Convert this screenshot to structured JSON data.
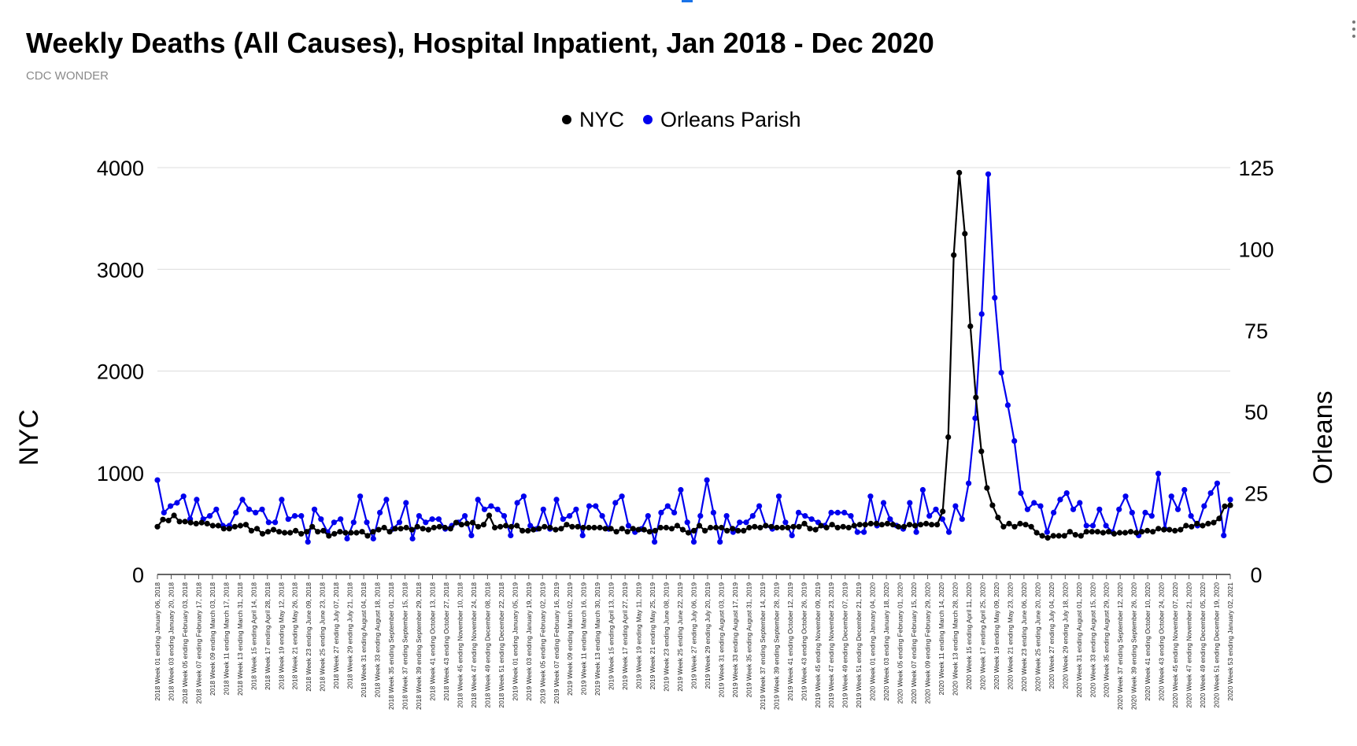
{
  "title": "Weekly Deaths (All Causes), Hospital Inpatient, Jan 2018 - Dec 2020",
  "subtitle": "CDC WONDER",
  "chart_data": {
    "type": "line",
    "legend_position": "top",
    "grid": true,
    "y_left": {
      "label": "NYC",
      "range": [
        0,
        4000
      ],
      "ticks": [
        0,
        1000,
        2000,
        3000,
        4000
      ]
    },
    "y_right": {
      "label": "Orleans",
      "range": [
        0,
        125
      ],
      "ticks": [
        0,
        25,
        50,
        75,
        100,
        125
      ]
    },
    "x_tick_labels": [
      "2018 Week 01 ending January 06, 2018",
      "2018 Week 03 ending January 20, 2018",
      "2018 Week 05 ending February 03, 2018",
      "2018 Week 07 ending February 17, 2018",
      "2018 Week 09 ending March 03, 2018",
      "2018 Week 11 ending March 17, 2018",
      "2018 Week 13 ending March 31, 2018",
      "2018 Week 15 ending April 14, 2018",
      "2018 Week 17 ending April 28, 2018",
      "2018 Week 19 ending May 12, 2018",
      "2018 Week 21 ending May 26, 2018",
      "2018 Week 23 ending June 09, 2018",
      "2018 Week 25 ending June 23, 2018",
      "2018 Week 27 ending July 07, 2018",
      "2018 Week 29 ending July 21, 2018",
      "2018 Week 31 ending August 04, 2018",
      "2018 Week 33 ending August 18, 2018",
      "2018 Week 35 ending September 01, 2018",
      "2018 Week 37 ending September 15, 2018",
      "2018 Week 39 ending September 29, 2018",
      "2018 Week 41 ending October 13, 2018",
      "2018 Week 43 ending October 27, 2018",
      "2018 Week 45 ending November 10, 2018",
      "2018 Week 47 ending November 24, 2018",
      "2018 Week 49 ending December 08, 2018",
      "2018 Week 51 ending December 22, 2018",
      "2019 Week 01 ending January 05, 2019",
      "2019 Week 03 ending January 19, 2019",
      "2019 Week 05 ending February 02, 2019",
      "2019 Week 07 ending February 16, 2019",
      "2019 Week 09 ending March 02, 2019",
      "2019 Week 11 ending March 16, 2019",
      "2019 Week 13 ending March 30, 2019",
      "2019 Week 15 ending April 13, 2019",
      "2019 Week 17 ending April 27, 2019",
      "2019 Week 19 ending May 11, 2019",
      "2019 Week 21 ending May 25, 2019",
      "2019 Week 23 ending June 08, 2019",
      "2019 Week 25 ending June 22, 2019",
      "2019 Week 27 ending July 06, 2019",
      "2019 Week 29 ending July 20, 2019",
      "2019 Week 31 ending August 03, 2019",
      "2019 Week 33 ending August 17, 2019",
      "2019 Week 35 ending August 31, 2019",
      "2019 Week 37 ending September 14, 2019",
      "2019 Week 39 ending September 28, 2019",
      "2019 Week 41 ending October 12, 2019",
      "2019 Week 43 ending October 26, 2019",
      "2019 Week 45 ending November 09, 2019",
      "2019 Week 47 ending November 23, 2019",
      "2019 Week 49 ending December 07, 2019",
      "2019 Week 51 ending December 21, 2019",
      "2020 Week 01 ending January 04, 2020",
      "2020 Week 03 ending January 18, 2020",
      "2020 Week 05 ending February 01, 2020",
      "2020 Week 07 ending February 15, 2020",
      "2020 Week 09 ending February 29, 2020",
      "2020 Week 11 ending March 14, 2020",
      "2020 Week 13 ending March 28, 2020",
      "2020 Week 15 ending April 11, 2020",
      "2020 Week 17 ending April 25, 2020",
      "2020 Week 19 ending May 09, 2020",
      "2020 Week 21 ending May 23, 2020",
      "2020 Week 23 ending June 06, 2020",
      "2020 Week 25 ending June 20, 2020",
      "2020 Week 27 ending July 04, 2020",
      "2020 Week 29 ending July 18, 2020",
      "2020 Week 31 ending August 01, 2020",
      "2020 Week 33 ending August 15, 2020",
      "2020 Week 35 ending August 29, 2020",
      "2020 Week 37 ending September 12, 2020",
      "2020 Week 39 ending September 26, 2020",
      "2020 Week 41 ending October 10, 2020",
      "2020 Week 43 ending October 24, 2020",
      "2020 Week 45 ending November 07, 2020",
      "2020 Week 47 ending November 21, 2020",
      "2020 Week 49 ending December 05, 2020",
      "2020 Week 51 ending December 19, 2020",
      "2020 Week 53 ending January 02, 2021"
    ],
    "series": [
      {
        "name": "NYC",
        "axis": "left",
        "color": "#000000",
        "values": [
          470,
          540,
          530,
          580,
          520,
          520,
          510,
          500,
          510,
          500,
          480,
          480,
          450,
          450,
          470,
          480,
          490,
          430,
          450,
          400,
          420,
          440,
          420,
          410,
          410,
          430,
          400,
          420,
          470,
          420,
          430,
          380,
          400,
          420,
          410,
          410,
          410,
          420,
          380,
          420,
          440,
          460,
          420,
          450,
          450,
          460,
          440,
          470,
          450,
          440,
          460,
          470,
          460,
          450,
          510,
          490,
          500,
          510,
          470,
          490,
          580,
          460,
          470,
          480,
          470,
          480,
          430,
          430,
          440,
          450,
          470,
          460,
          440,
          450,
          490,
          470,
          470,
          460,
          460,
          460,
          460,
          450,
          450,
          420,
          450,
          420,
          450,
          440,
          440,
          420,
          430,
          460,
          460,
          450,
          480,
          440,
          410,
          430,
          480,
          430,
          460,
          460,
          460,
          430,
          450,
          430,
          430,
          460,
          470,
          460,
          480,
          470,
          460,
          460,
          460,
          470,
          470,
          500,
          450,
          440,
          480,
          460,
          490,
          460,
          470,
          460,
          480,
          490,
          490,
          500,
          500,
          490,
          500,
          490,
          470,
          470,
          490,
          480,
          490,
          500,
          490,
          490,
          620,
          1350,
          3140,
          3950,
          3350,
          2440,
          1740,
          1210,
          850,
          680,
          560,
          470,
          500,
          470,
          500,
          490,
          470,
          410,
          380,
          360,
          380,
          380,
          380,
          420,
          390,
          380,
          420,
          420,
          420,
          410,
          420,
          400,
          410,
          410,
          420,
          410,
          420,
          430,
          420,
          450,
          440,
          440,
          430,
          440,
          480,
          470,
          500,
          480,
          500,
          510,
          550,
          670,
          680
        ]
      },
      {
        "name": "Orleans Parish",
        "axis": "right",
        "color": "#0000ee",
        "values": [
          29,
          19,
          21,
          22,
          24,
          17,
          23,
          17,
          18,
          20,
          15,
          15,
          19,
          23,
          20,
          19,
          20,
          16,
          16,
          23,
          17,
          18,
          18,
          10,
          20,
          17,
          13,
          16,
          17,
          11,
          16,
          24,
          16,
          11,
          19,
          23,
          14,
          16,
          22,
          11,
          18,
          16,
          17,
          17,
          14,
          15,
          16,
          18,
          12,
          23,
          20,
          21,
          20,
          18,
          12,
          22,
          24,
          15,
          14,
          20,
          14,
          23,
          17,
          18,
          20,
          12,
          21,
          21,
          18,
          14,
          22,
          24,
          15,
          13,
          14,
          18,
          10,
          19,
          21,
          19,
          26,
          16,
          10,
          18,
          29,
          19,
          10,
          18,
          13,
          16,
          16,
          18,
          21,
          15,
          14,
          24,
          16,
          12,
          19,
          18,
          17,
          16,
          15,
          19,
          19,
          19,
          18,
          13,
          13,
          24,
          15,
          22,
          17,
          15,
          14,
          22,
          13,
          26,
          18,
          20,
          17,
          13,
          21,
          17,
          28,
          48,
          80,
          123,
          85,
          62,
          52,
          41,
          25,
          20,
          22,
          21,
          13,
          19,
          23,
          25,
          20,
          22,
          15,
          15,
          20,
          15,
          13,
          20,
          24,
          19,
          12,
          19,
          18,
          31,
          14,
          24,
          20,
          26,
          18,
          15,
          21,
          25,
          28,
          12,
          23
        ]
      }
    ]
  }
}
